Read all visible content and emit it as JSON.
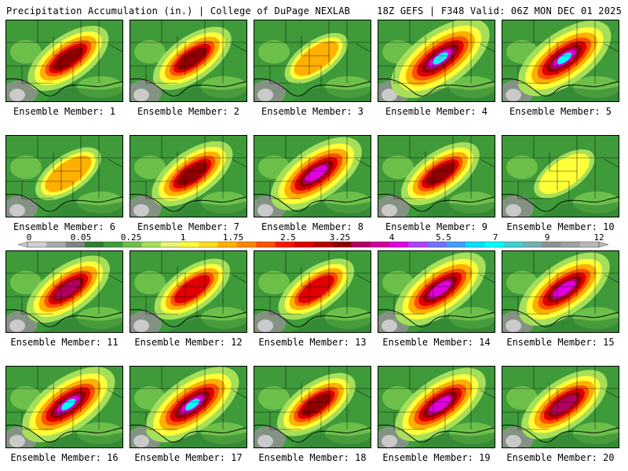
{
  "header": {
    "left": "Precipitation Accumulation (in.) | College of DuPage NEXLAB",
    "right": "18Z GEFS | F348 Valid: 06Z MON DEC 01 2025"
  },
  "colorbar": {
    "labels": [
      "0",
      "0.05",
      "0.25",
      "1",
      "1.75",
      "2.5",
      "3.25",
      "4",
      "5.5",
      "7",
      "9",
      "12"
    ],
    "colors": [
      "#d0d0d0",
      "#a8a8a8",
      "#828282",
      "#2e7d32",
      "#3f9a3a",
      "#6cc04a",
      "#a6e05a",
      "#e8f57a",
      "#ffff3a",
      "#ffdd22",
      "#ffb000",
      "#ff8400",
      "#ff5000",
      "#ff1400",
      "#e00000",
      "#b80000",
      "#8e0000",
      "#b00060",
      "#d000a0",
      "#e000e0",
      "#b040ff",
      "#7070ff",
      "#40a0ff",
      "#00e0ff",
      "#00ffff",
      "#40d0d0",
      "#70b0b0",
      "#909090",
      "#a0a0a0",
      "#b8b8b8"
    ]
  },
  "members": [
    {
      "label": "Ensemble Member: 1",
      "level": 0.6
    },
    {
      "label": "Ensemble Member: 2",
      "level": 0.55
    },
    {
      "label": "Ensemble Member: 3",
      "level": 0.25
    },
    {
      "label": "Ensemble Member: 4",
      "level": 0.95
    },
    {
      "label": "Ensemble Member: 5",
      "level": 0.85
    },
    {
      "label": "Ensemble Member: 6",
      "level": 0.3
    },
    {
      "label": "Ensemble Member: 7",
      "level": 0.6
    },
    {
      "label": "Ensemble Member: 8",
      "level": 0.8
    },
    {
      "label": "Ensemble Member: 9",
      "level": 0.55
    },
    {
      "label": "Ensemble Member: 10",
      "level": 0.2
    },
    {
      "label": "Ensemble Member: 11",
      "level": 0.65
    },
    {
      "label": "Ensemble Member: 12",
      "level": 0.5
    },
    {
      "label": "Ensemble Member: 13",
      "level": 0.5
    },
    {
      "label": "Ensemble Member: 14",
      "level": 0.8
    },
    {
      "label": "Ensemble Member: 15",
      "level": 0.8
    },
    {
      "label": "Ensemble Member: 16",
      "level": 0.85
    },
    {
      "label": "Ensemble Member: 17",
      "level": 0.85
    },
    {
      "label": "Ensemble Member: 18",
      "level": 0.55
    },
    {
      "label": "Ensemble Member: 19",
      "level": 0.8
    },
    {
      "label": "Ensemble Member: 20",
      "level": 0.7
    }
  ]
}
